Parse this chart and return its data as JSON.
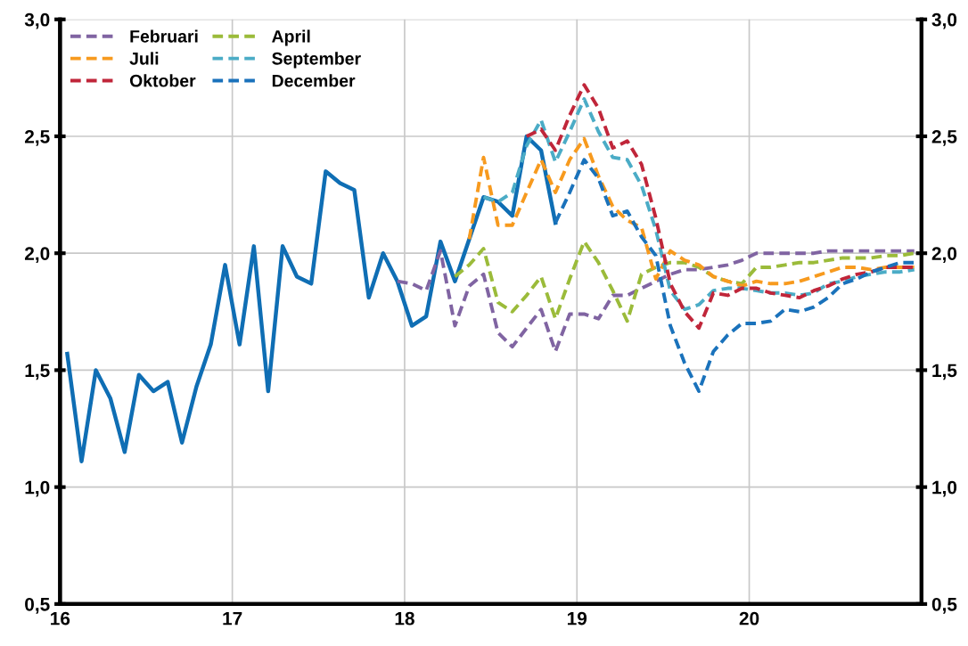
{
  "chart_data": {
    "type": "line",
    "x": [
      16.042,
      16.125,
      16.208,
      16.292,
      16.375,
      16.458,
      16.542,
      16.625,
      16.708,
      16.792,
      16.875,
      16.958,
      17.042,
      17.125,
      17.208,
      17.292,
      17.375,
      17.458,
      17.542,
      17.625,
      17.708,
      17.792,
      17.875,
      17.958,
      18.042,
      18.125,
      18.208,
      18.292,
      18.375,
      18.458,
      18.542,
      18.625,
      18.708,
      18.792,
      18.875,
      18.958,
      19.042,
      19.125,
      19.208,
      19.292,
      19.375,
      19.458,
      19.542,
      19.625,
      19.708,
      19.792,
      19.875,
      19.958,
      20.042,
      20.125,
      20.208,
      20.292,
      20.375,
      20.458,
      20.542,
      20.625,
      20.708,
      20.792,
      20.875,
      20.958
    ],
    "series": [
      {
        "color": "#0f6eb4",
        "line_style": "solid",
        "values": [
          1.57,
          1.11,
          1.5,
          1.38,
          1.15,
          1.48,
          1.41,
          1.45,
          1.19,
          1.43,
          1.61,
          1.95,
          1.61,
          2.03,
          1.41,
          2.03,
          1.9,
          1.87,
          2.35,
          2.3,
          2.27,
          1.81,
          2.0,
          1.88,
          1.69,
          1.73,
          2.05,
          1.88,
          2.06,
          2.24,
          2.22,
          2.16,
          2.5,
          2.44,
          2.13,
          null,
          null,
          null,
          null,
          null,
          null,
          null,
          null,
          null,
          null,
          null,
          null,
          null,
          null,
          null,
          null,
          null,
          null,
          null,
          null,
          null,
          null,
          null,
          null,
          null
        ]
      },
      {
        "name": "Februari",
        "color": "#8064a2",
        "line_style": "dashed",
        "values": [
          null,
          null,
          null,
          null,
          null,
          null,
          null,
          null,
          null,
          null,
          null,
          null,
          null,
          null,
          null,
          null,
          null,
          null,
          null,
          null,
          null,
          null,
          null,
          1.88,
          1.87,
          1.84,
          2.01,
          1.69,
          1.86,
          1.91,
          1.66,
          1.6,
          1.68,
          1.76,
          1.58,
          1.74,
          1.74,
          1.72,
          1.82,
          1.82,
          1.85,
          1.88,
          1.91,
          1.93,
          1.93,
          1.94,
          1.95,
          1.97,
          2.0,
          2.0,
          2.0,
          2.0,
          2.0,
          2.01,
          2.01,
          2.01,
          2.01,
          2.01,
          2.01,
          2.01
        ]
      },
      {
        "name": "April",
        "color": "#9bbb3a",
        "line_style": "dashed",
        "values": [
          null,
          null,
          null,
          null,
          null,
          null,
          null,
          null,
          null,
          null,
          null,
          null,
          null,
          null,
          null,
          null,
          null,
          null,
          null,
          null,
          null,
          null,
          null,
          null,
          null,
          null,
          null,
          1.9,
          1.95,
          2.02,
          1.79,
          1.75,
          1.82,
          1.9,
          1.72,
          1.89,
          2.05,
          1.96,
          1.84,
          1.71,
          1.91,
          1.94,
          1.96,
          1.96,
          1.94,
          1.9,
          1.88,
          1.87,
          1.94,
          1.94,
          1.95,
          1.96,
          1.96,
          1.97,
          1.98,
          1.98,
          1.98,
          1.99,
          1.99,
          2.0
        ]
      },
      {
        "name": "Juli",
        "color": "#f79a1e",
        "line_style": "dashed",
        "values": [
          null,
          null,
          null,
          null,
          null,
          null,
          null,
          null,
          null,
          null,
          null,
          null,
          null,
          null,
          null,
          null,
          null,
          null,
          null,
          null,
          null,
          null,
          null,
          null,
          null,
          null,
          null,
          null,
          2.06,
          2.41,
          2.12,
          2.12,
          2.26,
          2.4,
          2.26,
          2.4,
          2.49,
          2.33,
          2.2,
          2.14,
          2.11,
          1.89,
          2.01,
          1.97,
          1.95,
          1.9,
          1.88,
          1.86,
          1.88,
          1.87,
          1.87,
          1.88,
          1.9,
          1.92,
          1.94,
          1.94,
          1.93,
          1.94,
          1.94,
          1.94
        ]
      },
      {
        "name": "September",
        "color": "#4bacc6",
        "line_style": "dashed",
        "values": [
          null,
          null,
          null,
          null,
          null,
          null,
          null,
          null,
          null,
          null,
          null,
          null,
          null,
          null,
          null,
          null,
          null,
          null,
          null,
          null,
          null,
          null,
          null,
          null,
          null,
          null,
          null,
          null,
          null,
          2.24,
          2.22,
          2.26,
          2.46,
          2.57,
          2.39,
          2.52,
          2.66,
          2.52,
          2.41,
          2.4,
          2.29,
          2.1,
          1.84,
          1.76,
          1.78,
          1.84,
          1.85,
          1.85,
          1.84,
          1.83,
          1.83,
          1.82,
          1.83,
          1.87,
          1.88,
          1.9,
          1.91,
          1.92,
          1.92,
          1.93
        ]
      },
      {
        "name": "Oktober",
        "color": "#c0263a",
        "line_style": "dashed",
        "values": [
          null,
          null,
          null,
          null,
          null,
          null,
          null,
          null,
          null,
          null,
          null,
          null,
          null,
          null,
          null,
          null,
          null,
          null,
          null,
          null,
          null,
          null,
          null,
          null,
          null,
          null,
          null,
          null,
          null,
          null,
          null,
          null,
          2.5,
          2.53,
          2.44,
          2.59,
          2.72,
          2.62,
          2.45,
          2.48,
          2.38,
          2.15,
          1.87,
          1.75,
          1.68,
          1.83,
          1.82,
          1.85,
          1.85,
          1.83,
          1.82,
          1.81,
          1.84,
          1.86,
          1.89,
          1.91,
          1.92,
          1.94,
          1.94,
          1.94
        ]
      },
      {
        "name": "December",
        "color": "#1a72bb",
        "line_style": "dashed",
        "values": [
          null,
          null,
          null,
          null,
          null,
          null,
          null,
          null,
          null,
          null,
          null,
          null,
          null,
          null,
          null,
          null,
          null,
          null,
          null,
          null,
          null,
          null,
          null,
          null,
          null,
          null,
          null,
          null,
          null,
          null,
          null,
          null,
          null,
          null,
          2.13,
          2.26,
          2.4,
          2.32,
          2.16,
          2.18,
          2.07,
          1.99,
          1.69,
          1.53,
          1.41,
          1.58,
          1.65,
          1.7,
          1.7,
          1.71,
          1.76,
          1.75,
          1.77,
          1.81,
          1.87,
          1.89,
          1.92,
          1.94,
          1.96,
          1.96
        ]
      }
    ],
    "xlim": [
      16,
      21
    ],
    "xticks": [
      16,
      17,
      18,
      19,
      20
    ],
    "ylim": [
      0.5,
      3.0
    ],
    "yticks": [
      {
        "value": 0.5,
        "label": "0,5"
      },
      {
        "value": 1.0,
        "label": "1,0"
      },
      {
        "value": 1.5,
        "label": "1,5"
      },
      {
        "value": 2.0,
        "label": "2,0"
      },
      {
        "value": 2.5,
        "label": "2,5"
      },
      {
        "value": 3.0,
        "label": "3,0"
      }
    ],
    "y2lim": [
      0.5,
      3.0
    ],
    "y2ticks": [
      {
        "value": 0.5,
        "label": "0,5"
      },
      {
        "value": 1.0,
        "label": "1,0"
      },
      {
        "value": 1.5,
        "label": "1,5"
      },
      {
        "value": 2.0,
        "label": "2,0"
      },
      {
        "value": 2.5,
        "label": "2,5"
      },
      {
        "value": 3.0,
        "label": "3,0"
      }
    ],
    "grid": true,
    "legend": "top left"
  }
}
